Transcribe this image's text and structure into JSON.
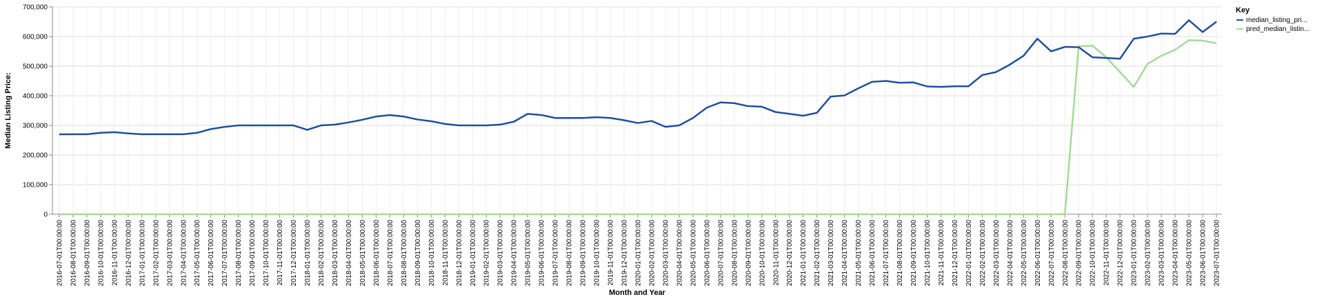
{
  "chart_data": {
    "type": "line",
    "xlabel": "Month and Year",
    "ylabel": "Median Listing Price:",
    "ylim": [
      0,
      700000
    ],
    "yticks": [
      0,
      100000,
      200000,
      300000,
      400000,
      500000,
      600000,
      700000
    ],
    "ytick_labels": [
      "0",
      "100,000",
      "200,000",
      "300,000",
      "400,000",
      "500,000",
      "600,000",
      "700,000"
    ],
    "grid": true,
    "legend_title": "Key",
    "legend_position": "top-right",
    "categories": [
      "2016-07-01T00:00:00",
      "2016-08-01T00:00:00",
      "2016-09-01T00:00:00",
      "2016-10-01T00:00:00",
      "2016-11-01T00:00:00",
      "2016-12-01T00:00:00",
      "2017-01-01T00:00:00",
      "2017-02-01T00:00:00",
      "2017-03-01T00:00:00",
      "2017-04-01T00:00:00",
      "2017-05-01T00:00:00",
      "2017-06-01T00:00:00",
      "2017-07-01T00:00:00",
      "2017-08-01T00:00:00",
      "2017-09-01T00:00:00",
      "2017-10-01T00:00:00",
      "2017-11-01T00:00:00",
      "2017-12-01T00:00:00",
      "2018-01-01T00:00:00",
      "2018-02-01T00:00:00",
      "2018-03-01T00:00:00",
      "2018-04-01T00:00:00",
      "2018-05-01T00:00:00",
      "2018-06-01T00:00:00",
      "2018-07-01T00:00:00",
      "2018-08-01T00:00:00",
      "2018-09-01T00:00:00",
      "2018-10-01T00:00:00",
      "2018-11-01T00:00:00",
      "2018-12-01T00:00:00",
      "2019-01-01T00:00:00",
      "2019-02-01T00:00:00",
      "2019-03-01T00:00:00",
      "2019-04-01T00:00:00",
      "2019-05-01T00:00:00",
      "2019-06-01T00:00:00",
      "2019-07-01T00:00:00",
      "2019-08-01T00:00:00",
      "2019-09-01T00:00:00",
      "2019-10-01T00:00:00",
      "2019-11-01T00:00:00",
      "2019-12-01T00:00:00",
      "2020-01-01T00:00:00",
      "2020-02-01T00:00:00",
      "2020-03-01T00:00:00",
      "2020-04-01T00:00:00",
      "2020-05-01T00:00:00",
      "2020-06-01T00:00:00",
      "2020-07-01T00:00:00",
      "2020-08-01T00:00:00",
      "2020-09-01T00:00:00",
      "2020-10-01T00:00:00",
      "2020-11-01T00:00:00",
      "2020-12-01T00:00:00",
      "2021-01-01T00:00:00",
      "2021-02-01T00:00:00",
      "2021-03-01T00:00:00",
      "2021-04-01T00:00:00",
      "2021-05-01T00:00:00",
      "2021-06-01T00:00:00",
      "2021-07-01T00:00:00",
      "2021-08-01T00:00:00",
      "2021-09-01T00:00:00",
      "2021-10-01T00:00:00",
      "2021-11-01T00:00:00",
      "2021-12-01T00:00:00",
      "2022-01-01T00:00:00",
      "2022-02-01T00:00:00",
      "2022-03-01T00:00:00",
      "2022-04-01T00:00:00",
      "2022-05-01T00:00:00",
      "2022-06-01T00:00:00",
      "2022-07-01T00:00:00",
      "2022-08-01T00:00:00",
      "2022-09-01T00:00:00",
      "2022-10-01T00:00:00",
      "2022-11-01T00:00:00",
      "2022-12-01T00:00:00",
      "2023-01-01T00:00:00",
      "2023-02-01T00:00:00",
      "2023-03-01T00:00:00",
      "2023-04-01T00:00:00",
      "2023-05-01T00:00:00",
      "2023-06-01T00:00:00",
      "2023-07-01T00:00:00"
    ],
    "series": [
      {
        "name": "median_listing_pri...",
        "color": "#1f4e9c",
        "values": [
          269900,
          270000,
          270000,
          275000,
          277000,
          273000,
          270000,
          270000,
          270000,
          270000,
          274900,
          287500,
          294900,
          299900,
          299900,
          299900,
          299900,
          299900,
          284900,
          299900,
          302500,
          310000,
          319000,
          330000,
          334900,
          329900,
          319900,
          314000,
          305000,
          299900,
          299900,
          299900,
          302500,
          312500,
          339000,
          335000,
          325000,
          325000,
          325000,
          327500,
          325000,
          317500,
          308000,
          315000,
          295000,
          300000,
          325000,
          359900,
          377500,
          375000,
          365000,
          363000,
          345000,
          339000,
          332500,
          342500,
          397500,
          401000,
          425000,
          447000,
          450000,
          444000,
          445000,
          431500,
          429900,
          432000,
          432000,
          469900,
          479900,
          505000,
          535000,
          592500,
          550000,
          565000,
          564000,
          530000,
          527500,
          524900,
          592500,
          599900,
          610000,
          609000,
          655000,
          615000,
          649900
        ]
      },
      {
        "name": "pred_median_listin...",
        "color": "#a5d99a",
        "values": [
          0,
          0,
          0,
          0,
          0,
          0,
          0,
          0,
          0,
          0,
          0,
          0,
          0,
          0,
          0,
          0,
          0,
          0,
          0,
          0,
          0,
          0,
          0,
          0,
          0,
          0,
          0,
          0,
          0,
          0,
          0,
          0,
          0,
          0,
          0,
          0,
          0,
          0,
          0,
          0,
          0,
          0,
          0,
          0,
          0,
          0,
          0,
          0,
          0,
          0,
          0,
          0,
          0,
          0,
          0,
          0,
          0,
          0,
          0,
          0,
          0,
          0,
          0,
          0,
          0,
          0,
          0,
          0,
          0,
          0,
          0,
          0,
          0,
          0,
          567000,
          569000,
          530000,
          480000,
          430000,
          507500,
          535000,
          555000,
          587500,
          586000,
          577500
        ]
      }
    ]
  }
}
